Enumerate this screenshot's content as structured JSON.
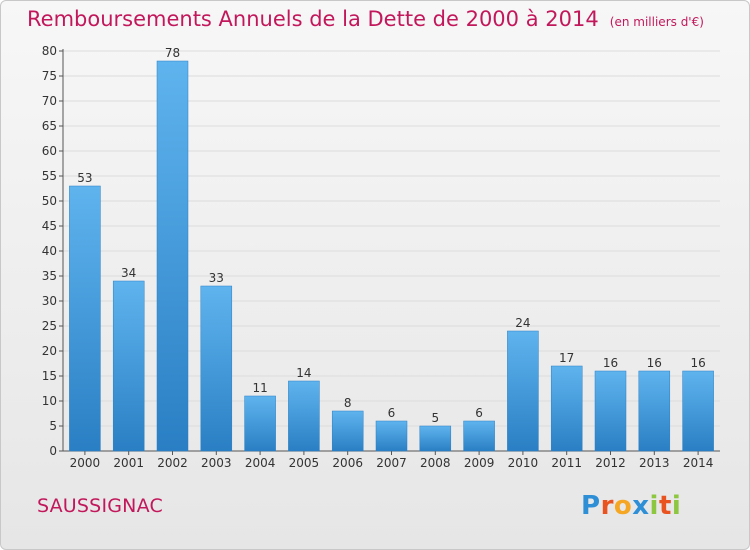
{
  "title": "Remboursements Annuels de la Dette de 2000 à 2014",
  "unit_note": "(en milliers d'€)",
  "commune": "SAUSSIGNAC",
  "logo": {
    "text": "Proxiti",
    "letters": [
      "P",
      "r",
      "o",
      "x",
      "i",
      "t",
      "i"
    ],
    "colors": [
      "#2e8fd6",
      "#e8531f",
      "#f5a623",
      "#2e8fd6",
      "#8dc63f",
      "#e8531f",
      "#8dc63f"
    ]
  },
  "chart_data": {
    "type": "bar",
    "categories": [
      "2000",
      "2001",
      "2002",
      "2003",
      "2004",
      "2005",
      "2006",
      "2007",
      "2008",
      "2009",
      "2010",
      "2011",
      "2012",
      "2013",
      "2014"
    ],
    "values": [
      53,
      34,
      78,
      33,
      11,
      14,
      8,
      6,
      5,
      6,
      24,
      17,
      16,
      16,
      16
    ],
    "ylim": [
      0,
      80
    ],
    "yticks": [
      0,
      5,
      10,
      15,
      20,
      25,
      30,
      35,
      40,
      45,
      50,
      55,
      60,
      65,
      70,
      75,
      80
    ],
    "grid": true,
    "bar_color": "#3a9ae0"
  }
}
